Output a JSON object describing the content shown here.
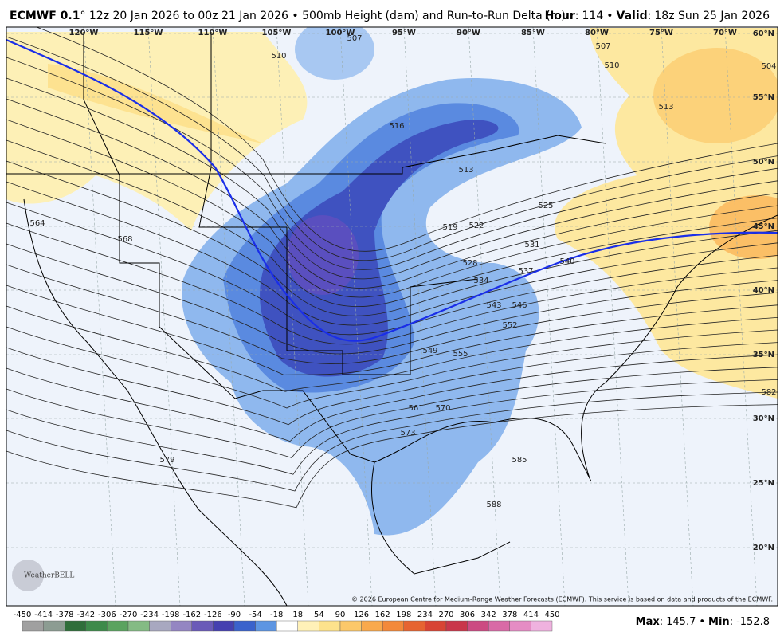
{
  "header": {
    "model": "ECMWF 0.1",
    "description": "° 12z 20 Jan 2026 to 00z 21 Jan 2026 • 500mb Height (dam) and Run-to-Run Delta (m)",
    "separator": ":",
    "dot": "•",
    "hour_label": "Hour",
    "hour_value": 114,
    "valid_label": "Valid",
    "valid_value": "18z Sun 25 Jan 2026"
  },
  "map": {
    "longitude_labels": [
      "120°W",
      "115°W",
      "110°W",
      "105°W",
      "100°W",
      "95°W",
      "90°W",
      "85°W",
      "80°W",
      "75°W",
      "70°W"
    ],
    "latitude_labels": [
      "60°N",
      "55°N",
      "50°N",
      "45°N",
      "40°N",
      "35°N",
      "30°N",
      "25°N",
      "20°N"
    ],
    "contour_labels": [
      510,
      507,
      516,
      513,
      519,
      522,
      528,
      531,
      534,
      537,
      543,
      546,
      552,
      549,
      555,
      561,
      570,
      573,
      579,
      585,
      588,
      564,
      568,
      504,
      507,
      510,
      513,
      582,
      525,
      540
    ],
    "logo": "WeatherBELL",
    "copyright": "© 2026 European Centre for Medium-Range Weather Forecasts (ECMWF). This service is based on data and products of the ECMWF."
  },
  "colorbar": {
    "ticks": [
      -450,
      -414,
      -378,
      -342,
      -306,
      -270,
      -234,
      -198,
      -162,
      -126,
      -90,
      -54,
      -18,
      18,
      54,
      90,
      126,
      162,
      198,
      234,
      270,
      306,
      342,
      378,
      414,
      450
    ],
    "colors": [
      "#a0a0a0",
      "#8c9c92",
      "#2f6e3a",
      "#3d8a4a",
      "#5aa35f",
      "#84bb84",
      "#a8a8c0",
      "#9486c2",
      "#6a5ab8",
      "#4540b0",
      "#3a62cc",
      "#5d95e2",
      "#ffffff",
      "#fff1b8",
      "#fde28c",
      "#fcc86a",
      "#f9a94c",
      "#f3893a",
      "#e66431",
      "#d84434",
      "#c9364a",
      "#cc4a82",
      "#d96aa6",
      "#e58cc4",
      "#efb2df"
    ]
  },
  "stats": {
    "max_label": "Max",
    "max": 145.7,
    "min_label": "Min",
    "min": -152.8
  }
}
